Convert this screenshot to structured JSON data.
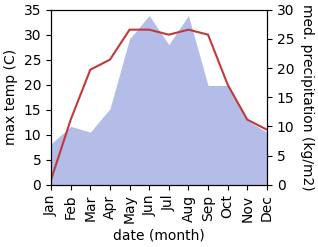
{
  "chart_data": {
    "type": "line",
    "xlabel": "date (month)",
    "ylabel": "max temp (C)",
    "y2label": "med. precipitation (kg/m2)",
    "categories": [
      "Jan",
      "Feb",
      "Mar",
      "Apr",
      "May",
      "Jun",
      "Jul",
      "Aug",
      "Sep",
      "Oct",
      "Nov",
      "Dec"
    ],
    "series": [
      {
        "type": "area",
        "axis": "y2",
        "color": "#b3bde8",
        "values": [
          7,
          10,
          9,
          13,
          25,
          29,
          24,
          29,
          17,
          17,
          11,
          9
        ]
      },
      {
        "type": "line",
        "axis": "y",
        "color": "#c0393b",
        "values": [
          1,
          13,
          23,
          25,
          31,
          31,
          30,
          31,
          30,
          20,
          13,
          11
        ]
      }
    ],
    "ylim": [
      0,
      35
    ],
    "yticks": [
      0,
      5,
      10,
      15,
      20,
      25,
      30,
      35
    ],
    "y2lim": [
      0,
      30
    ],
    "y2ticks": [
      0,
      5,
      10,
      15,
      20,
      25,
      30
    ],
    "grid": false
  }
}
